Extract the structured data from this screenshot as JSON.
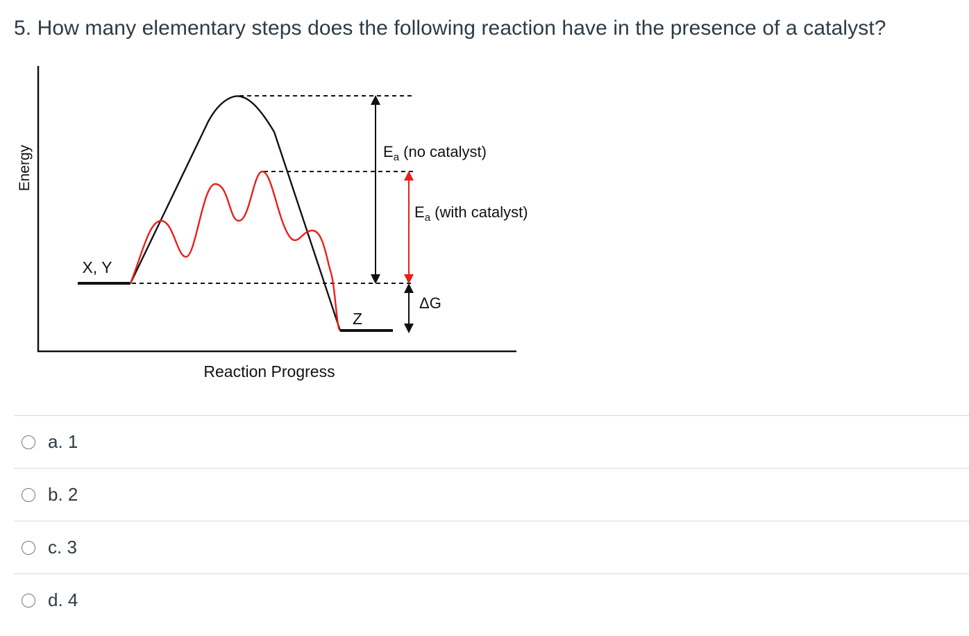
{
  "question": {
    "title": "5. How many elementary steps does the following reaction have in the presence of a catalyst?"
  },
  "diagram": {
    "y_axis_label": "Energy",
    "x_axis_label": "Reaction Progress",
    "reactants_label": "X, Y",
    "product_label": "Z",
    "ea_no_catalyst_main": "E",
    "ea_no_catalyst_sub": "a",
    "ea_no_catalyst_rest": " (no catalyst)",
    "ea_with_catalyst_main": "E",
    "ea_with_catalyst_sub": "a",
    "ea_with_catalyst_rest": " (with catalyst)",
    "delta_g_label": "ΔG",
    "colors": {
      "uncatalyzed": "#111111",
      "catalyzed": "#e8201a"
    }
  },
  "answers": [
    {
      "label": "a. 1"
    },
    {
      "label": "b. 2"
    },
    {
      "label": "c. 3"
    },
    {
      "label": "d. 4"
    }
  ]
}
